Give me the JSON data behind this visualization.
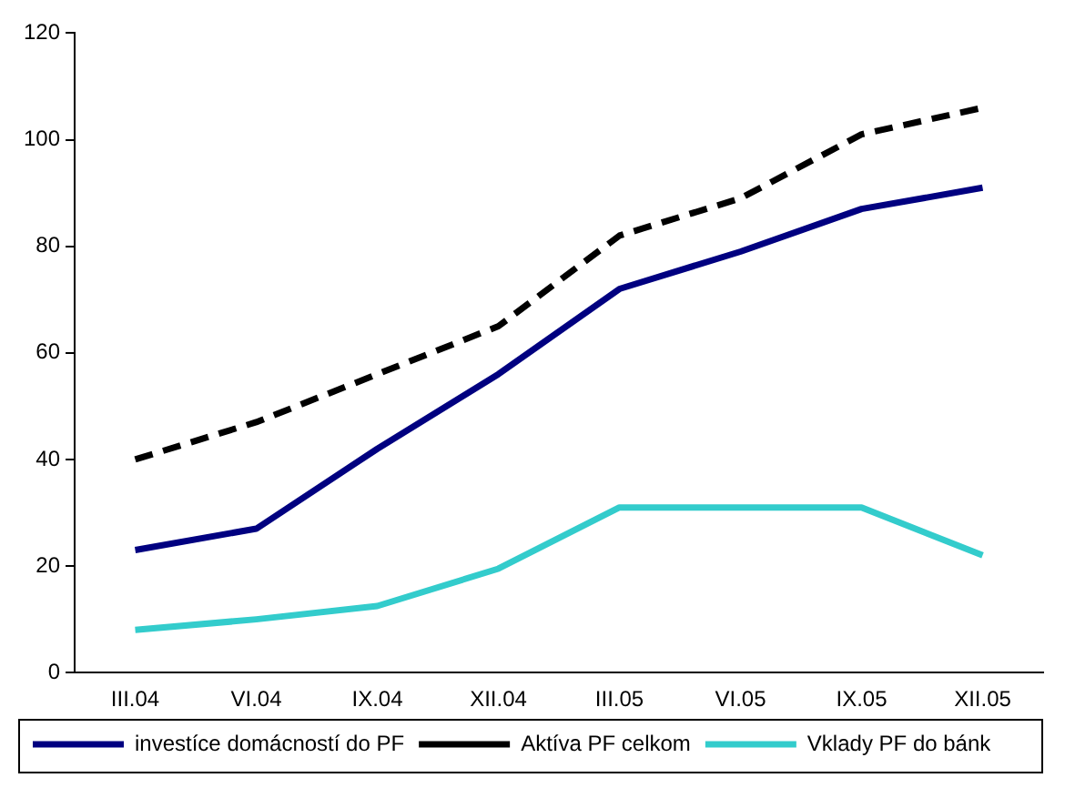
{
  "chart_data": {
    "type": "line",
    "categories": [
      "III.04",
      "VI.04",
      "IX.04",
      "XII.04",
      "III.05",
      "VI.05",
      "IX.05",
      "XII.05"
    ],
    "series": [
      {
        "name": "investíce domácností do PF",
        "color": "#000080",
        "line_style": "solid",
        "values": [
          23,
          27,
          42,
          56,
          72,
          79,
          87,
          91
        ]
      },
      {
        "name": "Aktíva PF celkom",
        "color": "#000000",
        "line_style": "dashed",
        "values": [
          40,
          47,
          56,
          65,
          82,
          89,
          101,
          106
        ]
      },
      {
        "name": "Vklady PF do bánk",
        "color": "#33cccc",
        "line_style": "solid",
        "values": [
          8,
          10,
          12.5,
          19.5,
          31,
          31,
          31,
          22
        ]
      }
    ],
    "ylim": [
      0,
      120
    ],
    "yticks": [
      0,
      20,
      40,
      60,
      80,
      100,
      120
    ],
    "grid": false,
    "legend": "bottom",
    "marker": "none"
  }
}
